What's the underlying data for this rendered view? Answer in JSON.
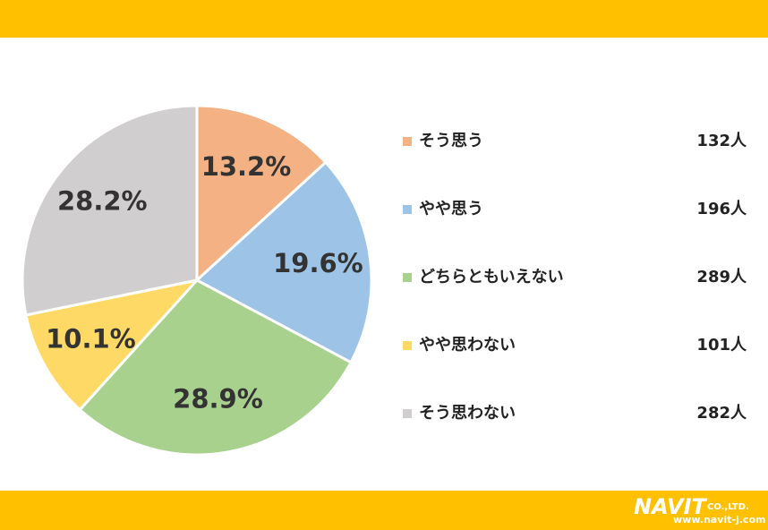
{
  "chart_data": {
    "type": "pie",
    "categories": [
      "そう思う",
      "やや思う",
      "どちらともいえない",
      "やや思わない",
      "そう思わない"
    ],
    "values": [
      13.2,
      19.6,
      28.9,
      10.1,
      28.2
    ],
    "value_labels": [
      "13.2%",
      "19.6%",
      "28.9%",
      "10.1%",
      "28.2%"
    ],
    "counts": [
      "132人",
      "196人",
      "289人",
      "101人",
      "282人"
    ],
    "colors": [
      "#F4B183",
      "#9DC3E6",
      "#A9D18E",
      "#FFD966",
      "#D0CECE"
    ],
    "legend": "right"
  },
  "footer": {
    "logo": "NAVIT",
    "company": "CO.,LTD.",
    "url": "www.navit-j.com"
  }
}
